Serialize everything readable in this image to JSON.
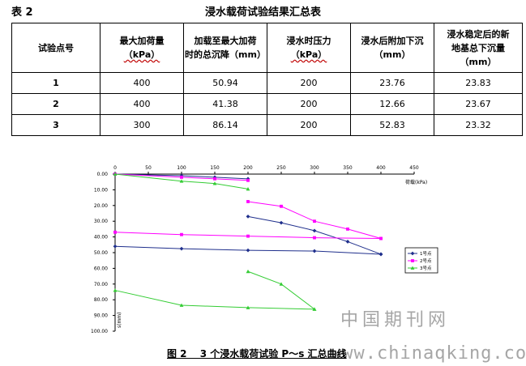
{
  "table": {
    "number": "表 2",
    "title": "浸水载荷试验结果汇总表",
    "headers": [
      [
        "试验点号"
      ],
      [
        "最大加荷量",
        "（kPa）"
      ],
      [
        "加载至最大加荷",
        "时的总沉降（mm）"
      ],
      [
        "浸水时压力",
        "（kPa）"
      ],
      [
        "浸水后附加下沉",
        "（mm）"
      ],
      [
        "浸水稳定后的新",
        "地基总下沉量",
        "（mm）"
      ]
    ],
    "rows": [
      [
        "1",
        "400",
        "50.94",
        "200",
        "23.76",
        "23.83"
      ],
      [
        "2",
        "400",
        "41.38",
        "200",
        "12.66",
        "23.67"
      ],
      [
        "3",
        "300",
        "86.14",
        "200",
        "52.83",
        "23.32"
      ]
    ]
  },
  "figure": {
    "caption": "图 2　 3 个浸水载荷试验 P～s 汇总曲线",
    "watermark_cn": "中国期刊网",
    "watermark_url": "www.chinaqking.com"
  },
  "chart_data": {
    "type": "line",
    "xlabel": "荷载(kPa)",
    "ylabel": "s(mm)",
    "xlim": [
      0,
      450
    ],
    "ylim": [
      0,
      100
    ],
    "x_axis_position": "top",
    "y_inverted": true,
    "x_ticks": [
      "0",
      "50",
      "100",
      "150",
      "200",
      "250",
      "300",
      "350",
      "400",
      "450"
    ],
    "y_ticks": [
      "0.00",
      "10.00",
      "20.00",
      "30.00",
      "40.00",
      "50.00",
      "60.00",
      "70.00",
      "80.00",
      "90.00",
      "100.00"
    ],
    "legend_position": "right",
    "series": [
      {
        "name": "1号点",
        "color": "#1f2f8c",
        "marker": "diamond",
        "branches": [
          {
            "x": [
              0,
              100,
              150,
              200
            ],
            "y": [
              0,
              1.0,
              2.0,
              3.0
            ]
          },
          {
            "x": [
              200,
              250,
              300,
              350,
              400
            ],
            "y": [
              27,
              31,
              36,
              43,
              51
            ]
          },
          {
            "x": [
              0,
              100,
              200,
              300,
              400
            ],
            "y": [
              46,
              47.5,
              48.5,
              49,
              51
            ]
          }
        ]
      },
      {
        "name": "2号点",
        "color": "#ff00ff",
        "marker": "square",
        "branches": [
          {
            "x": [
              0,
              100,
              150,
              200
            ],
            "y": [
              0,
              2.0,
              3.0,
              4.0
            ]
          },
          {
            "x": [
              200,
              250,
              300,
              350,
              400
            ],
            "y": [
              17.5,
              20.5,
              30,
              35,
              41
            ]
          },
          {
            "x": [
              0,
              100,
              200,
              300,
              400
            ],
            "y": [
              37,
              38.5,
              39.5,
              40.5,
              41
            ]
          }
        ]
      },
      {
        "name": "3号点",
        "color": "#33cc33",
        "marker": "triangle",
        "branches": [
          {
            "x": [
              0,
              100,
              150,
              200
            ],
            "y": [
              0,
              4.5,
              6.0,
              9.5
            ]
          },
          {
            "x": [
              200,
              250,
              300
            ],
            "y": [
              62,
              70,
              86
            ]
          },
          {
            "x": [
              0,
              100,
              200,
              300
            ],
            "y": [
              74,
              83.5,
              85,
              86
            ]
          }
        ]
      }
    ],
    "grid": false
  }
}
